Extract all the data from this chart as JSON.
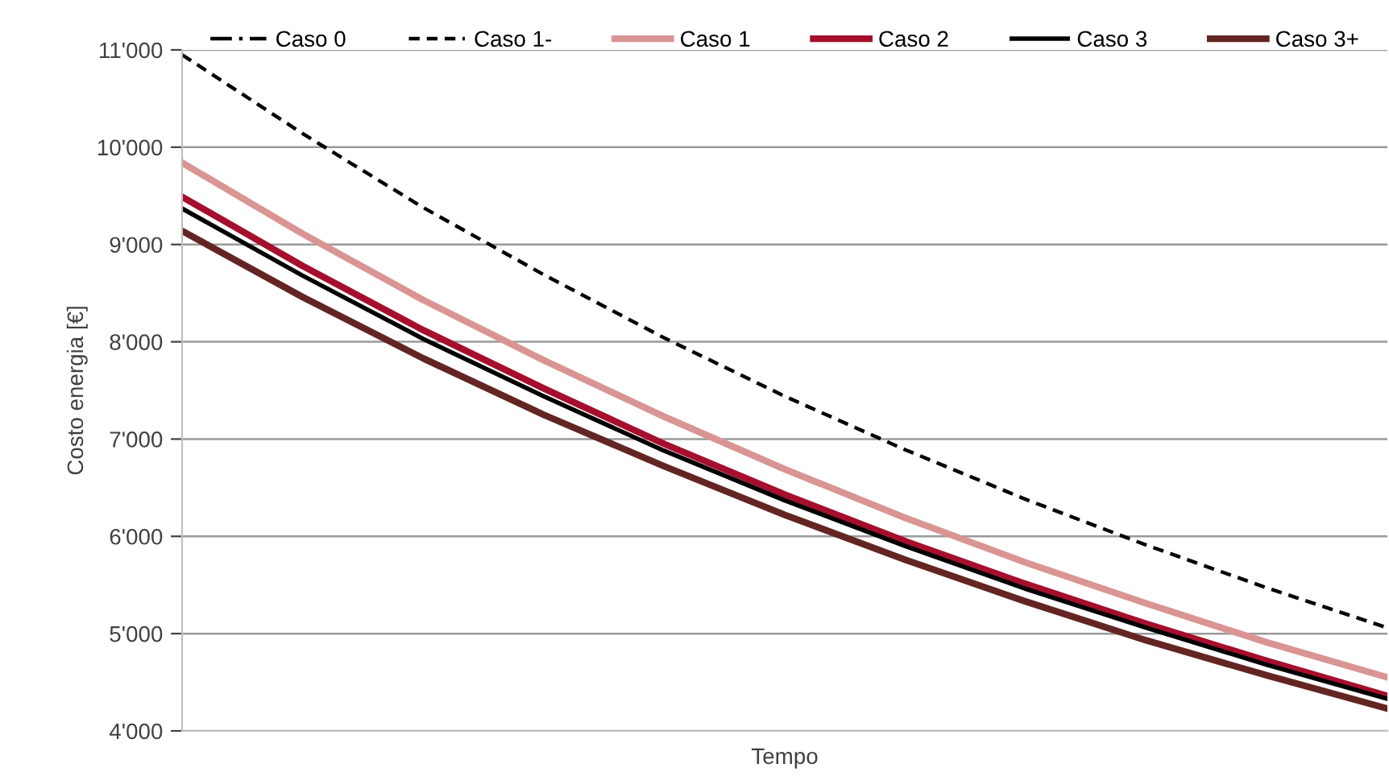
{
  "chart_data": {
    "type": "line",
    "xlabel": "Tempo",
    "ylabel": "Costo energia [€]",
    "categories": [
      null,
      null,
      null,
      null,
      null,
      null,
      null,
      null,
      null,
      null,
      null
    ],
    "series": [
      {
        "name": "Caso 0",
        "color": "#000000",
        "line_style": "dashdot",
        "values": [
          null,
          null,
          null,
          null,
          null,
          null,
          null,
          null,
          null,
          null,
          null
        ]
      },
      {
        "name": "Caso 1-",
        "color": "#000000",
        "line_style": "dashed",
        "values": [
          10950,
          10140,
          9380,
          8690,
          8040,
          7440,
          6890,
          6380,
          5910,
          5470,
          5060
        ]
      },
      {
        "name": "Caso 1",
        "color": "#d99594",
        "line_style": "solid",
        "values": [
          9840,
          9110,
          8430,
          7810,
          7230,
          6690,
          6190,
          5730,
          5310,
          4910,
          4550
        ]
      },
      {
        "name": "Caso 2",
        "color": "#a50f2d",
        "line_style": "solid",
        "values": [
          9490,
          8780,
          8120,
          7520,
          6950,
          6430,
          5950,
          5510,
          5100,
          4720,
          4360
        ]
      },
      {
        "name": "Caso 3",
        "color": "#000000",
        "line_style": "solid",
        "values": [
          9370,
          8680,
          8030,
          7440,
          6880,
          6370,
          5900,
          5460,
          5060,
          4680,
          4330
        ]
      },
      {
        "name": "Caso 3+",
        "color": "#632523",
        "line_style": "solid",
        "values": [
          9140,
          8460,
          7830,
          7250,
          6720,
          6220,
          5760,
          5330,
          4930,
          4570,
          4230
        ]
      }
    ],
    "ylim": [
      4000,
      11000
    ],
    "yticks": [
      {
        "value": 4000,
        "label": "4'000"
      },
      {
        "value": 5000,
        "label": "5'000"
      },
      {
        "value": 6000,
        "label": "6'000"
      },
      {
        "value": 7000,
        "label": "7'000"
      },
      {
        "value": 8000,
        "label": "8'000"
      },
      {
        "value": 9000,
        "label": "9'000"
      },
      {
        "value": 10000,
        "label": "10'000"
      },
      {
        "value": 11000,
        "label": "11'000"
      }
    ],
    "grid": "y",
    "legend": "top",
    "marker": "none"
  }
}
